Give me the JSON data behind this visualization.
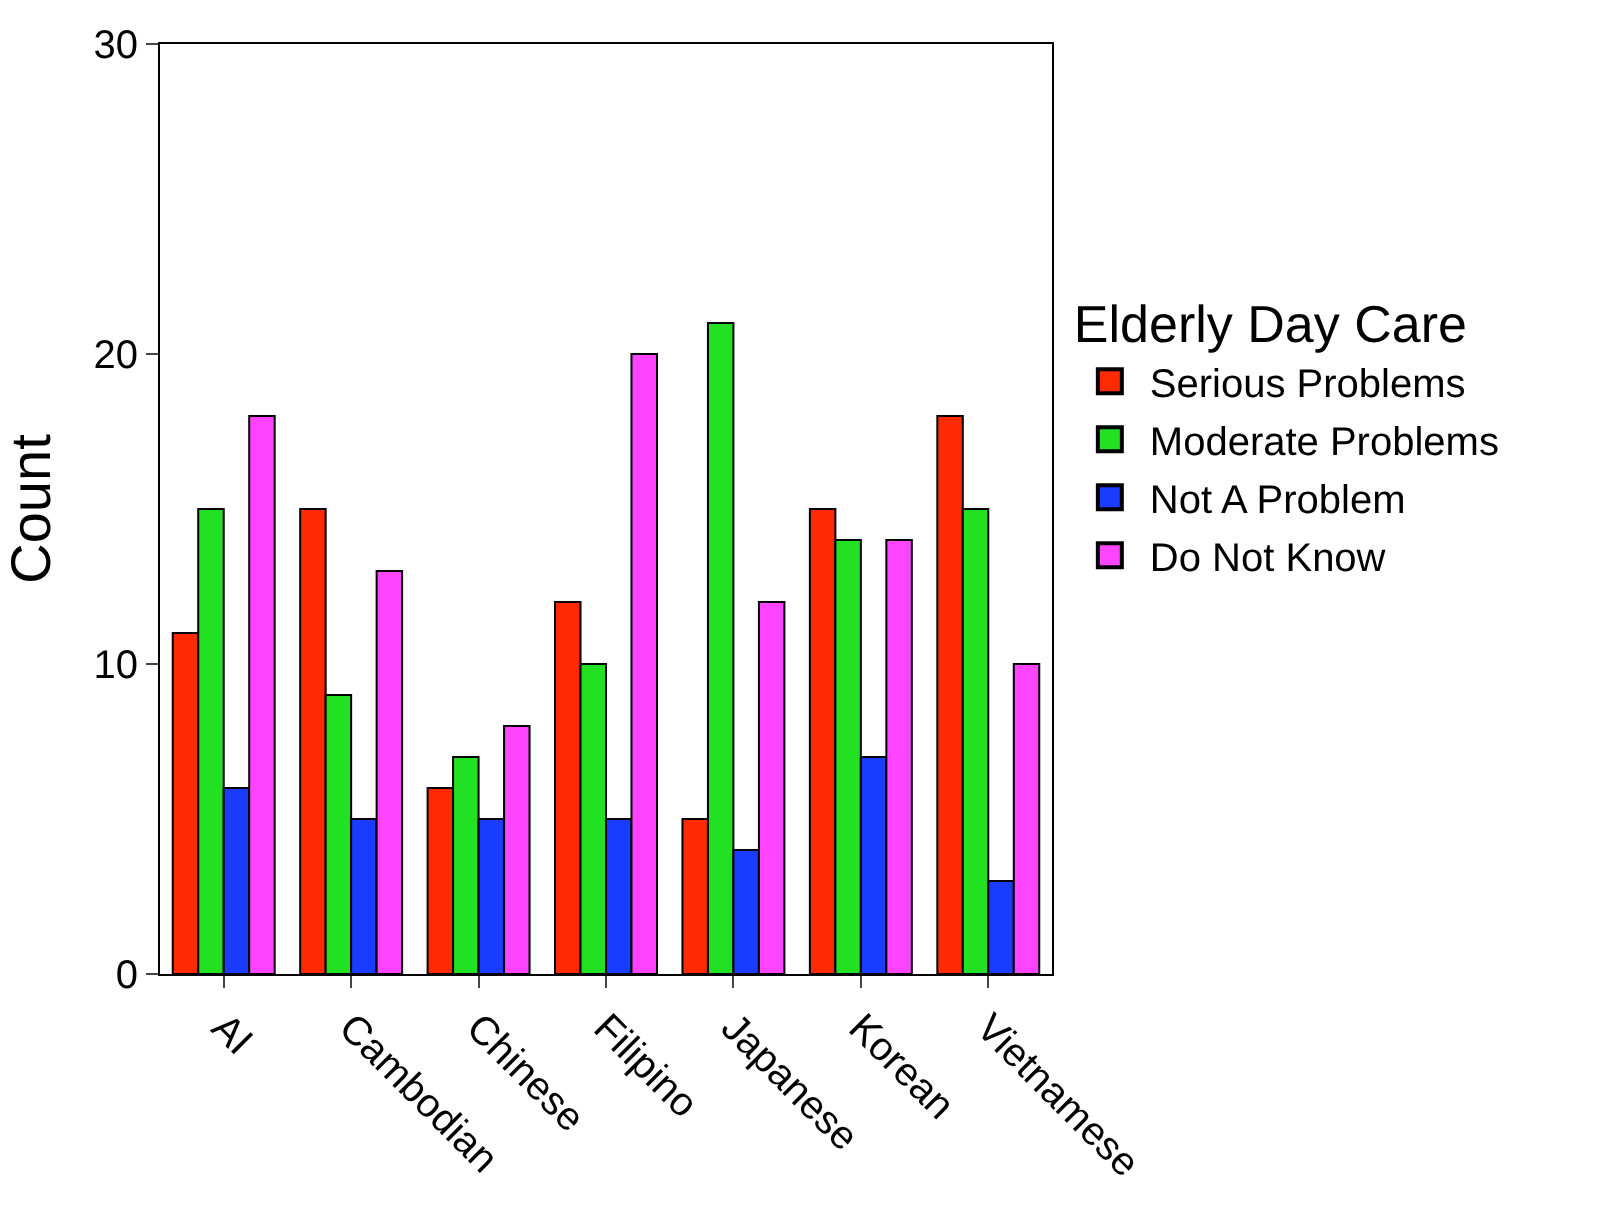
{
  "chart_data": {
    "type": "bar",
    "ylabel": "Count",
    "legend_title": "Elderly Day Care",
    "categories": [
      "AI",
      "Cambodian",
      "Chinese",
      "Filipino",
      "Japanese",
      "Korean",
      "Vietnamese"
    ],
    "series": [
      {
        "name": "Serious Problems",
        "color": "#ff2a00",
        "values": [
          11,
          15,
          6,
          12,
          5,
          15,
          18
        ]
      },
      {
        "name": "Moderate Problems",
        "color": "#22e022",
        "values": [
          15,
          9,
          7,
          10,
          21,
          14,
          15
        ]
      },
      {
        "name": "Not A Problem",
        "color": "#1a3cff",
        "values": [
          6,
          5,
          5,
          5,
          4,
          7,
          3
        ]
      },
      {
        "name": "Do Not Know",
        "color": "#ff44ff",
        "values": [
          18,
          13,
          8,
          20,
          12,
          14,
          10
        ]
      }
    ],
    "ylim": [
      0,
      30
    ],
    "yticks": [
      0,
      10,
      20,
      30
    ],
    "legend": "right"
  }
}
